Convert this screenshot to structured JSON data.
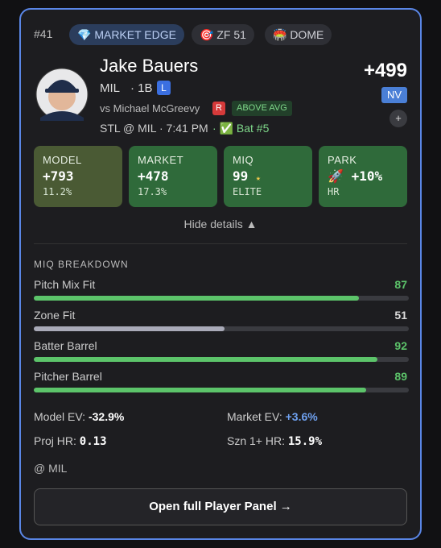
{
  "card": {
    "rank": "#41",
    "badges": [
      "💎 MARKET EDGE",
      "🎯 ZF 51",
      "🏟️ DOME"
    ],
    "player": {
      "name": "Jake Bauers",
      "team": "MIL",
      "position": "· 1B",
      "bats": "L",
      "opponent": "vs Michael McGreevy",
      "pitcher_hand": "R",
      "matchup_tag": "ABOVE AVG",
      "game": "STL @ MIL",
      "time": "· 7:41 PM",
      "lineup": "· ✅ Bat #5"
    },
    "odds": {
      "price": "+499",
      "book": "NV",
      "add": "+"
    },
    "tiles": [
      {
        "label": "MODEL",
        "value": "+793",
        "sub": "11.2%"
      },
      {
        "label": "MARKET",
        "value": "+478",
        "sub": "17.3%"
      },
      {
        "label": "MIQ",
        "value": "99",
        "icon": "★",
        "sub": "ELITE"
      },
      {
        "label": "PARK",
        "icon": "🚀",
        "value": "+10%",
        "sub": "HR"
      }
    ],
    "toggle": "Hide details ▲",
    "breakdown": {
      "title": "MIQ BREAKDOWN",
      "xlim": [
        0,
        100
      ],
      "rows": [
        {
          "label": "Pitch Mix Fit",
          "value": 87,
          "color": "#5cc46a"
        },
        {
          "label": "Zone Fit",
          "value": 51,
          "color": "#a9aab8"
        },
        {
          "label": "Batter Barrel",
          "value": 92,
          "color": "#5cc46a"
        },
        {
          "label": "Pitcher Barrel",
          "value": 89,
          "color": "#5cc46a"
        }
      ]
    },
    "stats": [
      {
        "label": "Model EV:",
        "value": "-32.9%"
      },
      {
        "label": "Market EV:",
        "value": "+3.6%"
      },
      {
        "label": "Proj HR:",
        "value": "0.13"
      },
      {
        "label": "Szn 1+ HR:",
        "value": "15.9%"
      }
    ],
    "venue": "@ MIL",
    "button": "Open full Player Panel →"
  }
}
